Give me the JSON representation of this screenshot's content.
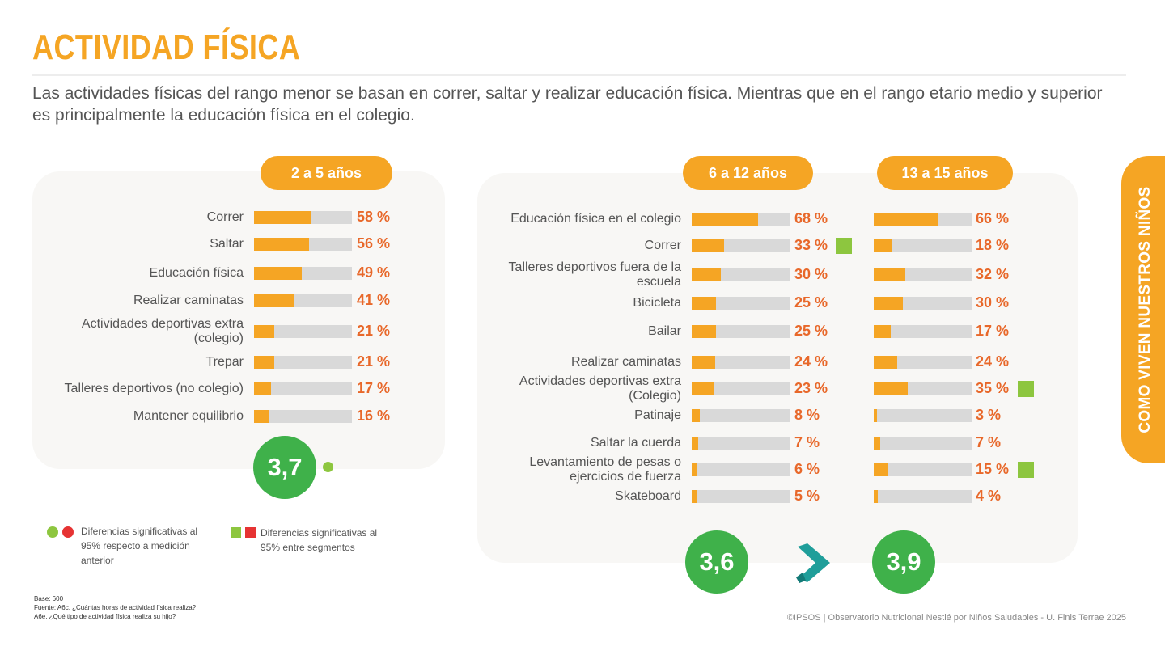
{
  "title": "ACTIVIDAD FÍSICA",
  "subtitle": "Las actividades físicas del rango menor se basan en correr, saltar y realizar educación física. Mientras que en el rango etario medio y superior es principalmente la educación física en el colegio.",
  "side_tab": "COMO VIVEN NUESTROS NIÑOS",
  "chart_data": [
    {
      "type": "bar",
      "title": "2 a 5 años",
      "categories": [
        "Correr",
        "Saltar",
        "Educación física",
        "Realizar caminatas",
        "Actividades deportivas extra (colegio)",
        "Trepar",
        "Talleres deportivos (no colegio)",
        "Mantener equilibrio"
      ],
      "values": [
        58,
        56,
        49,
        41,
        21,
        21,
        17,
        16
      ],
      "value_labels": [
        "58 %",
        "56 %",
        "49 %",
        "41 %",
        "21 %",
        "21 %",
        "17 %",
        "16 %"
      ],
      "xlim": [
        0,
        100
      ],
      "score": "3,7",
      "score_marker": "green-dot"
    },
    {
      "type": "bar",
      "series": [
        {
          "name": "6 a 12 años",
          "values": [
            68,
            33,
            30,
            25,
            25,
            24,
            23,
            8,
            7,
            6,
            5
          ],
          "value_labels": [
            "68 %",
            "33 %",
            "30 %",
            "25 %",
            "25 %",
            "24 %",
            "23 %",
            "8 %",
            "7 %",
            "6 %",
            "5 %"
          ],
          "significant": [
            false,
            true,
            false,
            false,
            false,
            false,
            false,
            false,
            false,
            false,
            false
          ],
          "score": "3,6"
        },
        {
          "name": "13 a 15 años",
          "values": [
            66,
            18,
            32,
            30,
            17,
            24,
            35,
            3,
            7,
            15,
            4
          ],
          "value_labels": [
            "66 %",
            "18 %",
            "32 %",
            "30 %",
            "17 %",
            "24 %",
            "35 %",
            "3 %",
            "7 %",
            "15 %",
            "4 %"
          ],
          "significant": [
            false,
            false,
            false,
            false,
            false,
            false,
            true,
            false,
            false,
            true,
            false
          ],
          "score": "3,9"
        }
      ],
      "categories": [
        "Educación física en el colegio",
        "Correr",
        "Talleres deportivos fuera de la escuela",
        "Bicicleta",
        "Bailar",
        "Realizar caminatas",
        "Actividades deportivas extra (Colegio)",
        "Patinaje",
        "Saltar la cuerda",
        "Levantamiento de pesas o ejercicios de fuerza",
        "Skateboard"
      ],
      "xlim": [
        0,
        100
      ],
      "comparison_icon": "greater-than-chevron-icon"
    }
  ],
  "legend": {
    "dots_text": "Diferencias significativas al 95% respecto a medición anterior",
    "squares_text": "Diferencias significativas al 95% entre segmentos"
  },
  "base_notes": [
    "Base: 600",
    "Fuente: A6c. ¿Cuántas horas de actividad física realiza?",
    "A6e. ¿Qué tipo de actividad física realiza su hijo?"
  ],
  "footer": "©IPSOS | Observatorio Nutricional Nestlé por Niños Saludables - U. Finis Terrae 2025",
  "colors": {
    "orange": "#f5a524",
    "pct": "#e8682a",
    "green": "#3fb14a",
    "light_green": "#8dc63f",
    "red": "#e63333",
    "track": "#d9d9d9"
  }
}
